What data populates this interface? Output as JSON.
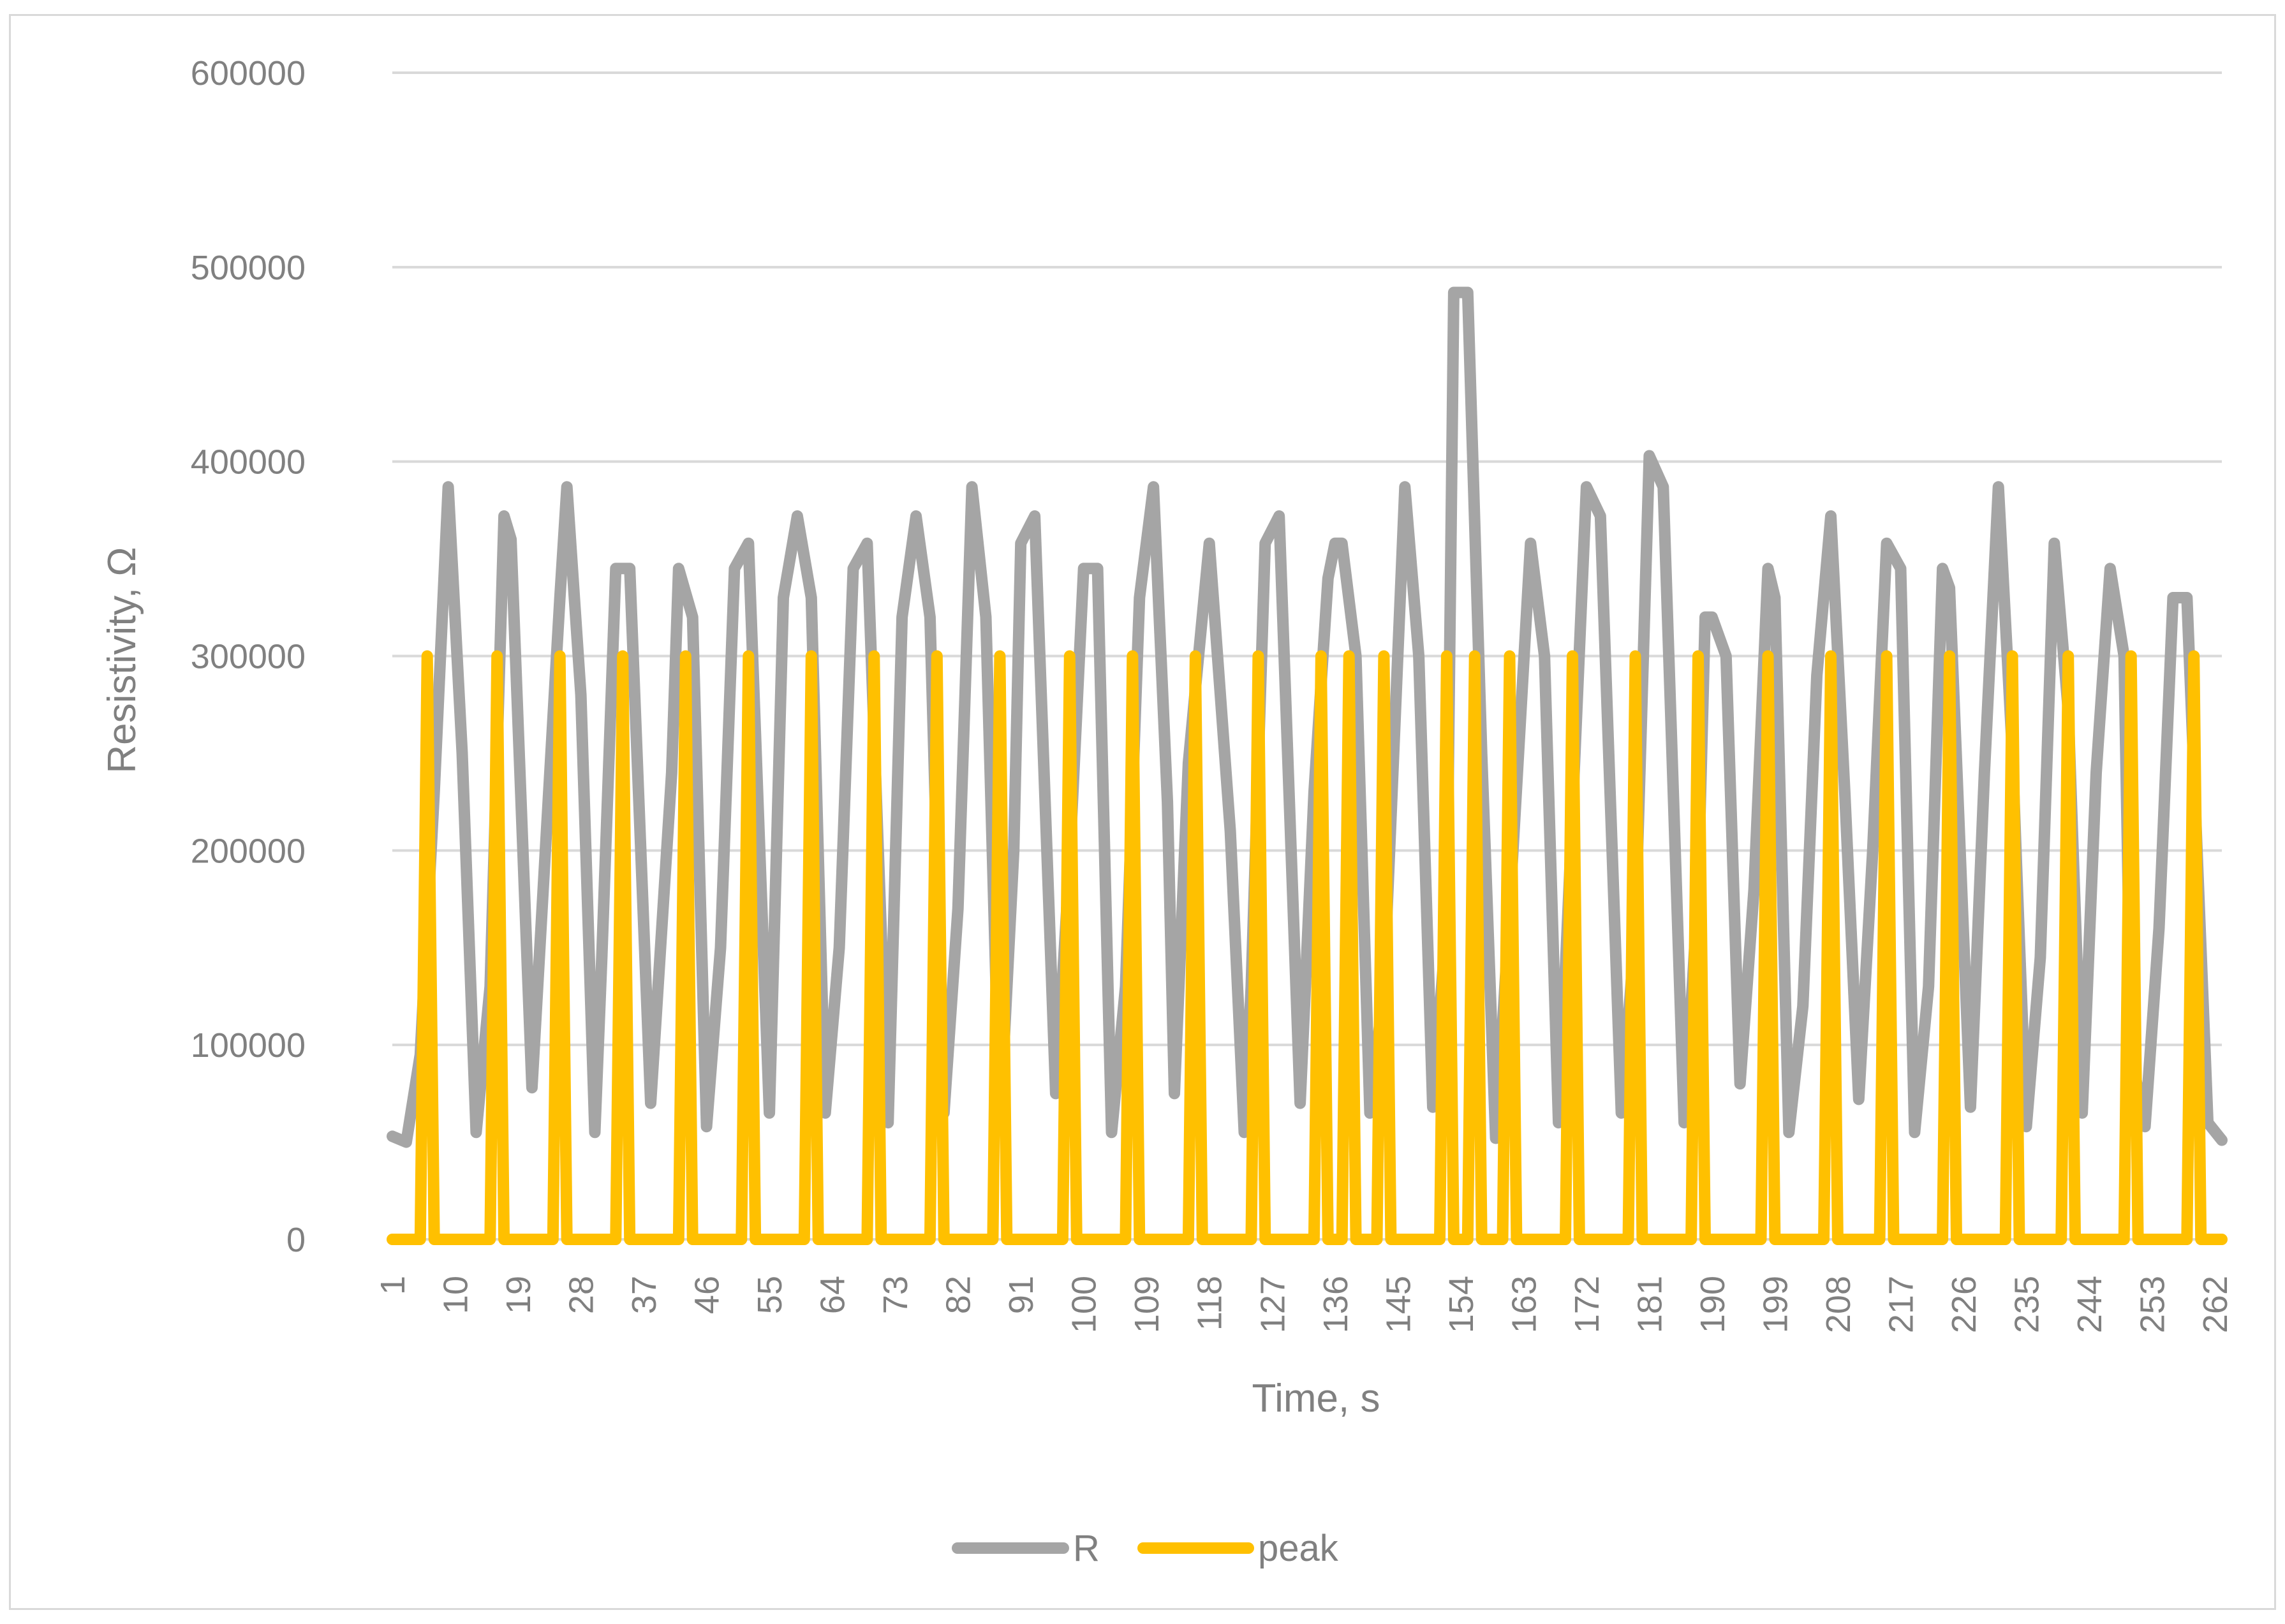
{
  "chart_data": {
    "type": "line",
    "title": "",
    "xlabel": "Time, s",
    "ylabel": "Resistivity, Ω",
    "ylim": [
      0,
      600000
    ],
    "yticks": [
      0,
      100000,
      200000,
      300000,
      400000,
      500000,
      600000
    ],
    "xlim": [
      1,
      263
    ],
    "xticks": [
      1,
      10,
      19,
      28,
      37,
      46,
      55,
      64,
      73,
      82,
      91,
      100,
      109,
      118,
      127,
      136,
      145,
      154,
      163,
      172,
      181,
      190,
      199,
      208,
      217,
      226,
      235,
      244,
      253,
      262
    ],
    "grid": true,
    "legend_position": "bottom",
    "series": [
      {
        "name": "R",
        "color": "#a5a5a5",
        "points": [
          [
            1,
            53000
          ],
          [
            3,
            50000
          ],
          [
            5,
            95000
          ],
          [
            7,
            230000
          ],
          [
            9,
            387000
          ],
          [
            11,
            250000
          ],
          [
            13,
            55000
          ],
          [
            15,
            130000
          ],
          [
            17,
            372000
          ],
          [
            18,
            360000
          ],
          [
            21,
            78000
          ],
          [
            23,
            205000
          ],
          [
            25,
            330000
          ],
          [
            26,
            387000
          ],
          [
            28,
            280000
          ],
          [
            30,
            55000
          ],
          [
            31,
            145000
          ],
          [
            33,
            345000
          ],
          [
            35,
            345000
          ],
          [
            38,
            70000
          ],
          [
            41,
            240000
          ],
          [
            42,
            345000
          ],
          [
            44,
            320000
          ],
          [
            46,
            58000
          ],
          [
            48,
            150000
          ],
          [
            50,
            345000
          ],
          [
            52,
            358000
          ],
          [
            55,
            65000
          ],
          [
            57,
            330000
          ],
          [
            59,
            372000
          ],
          [
            61,
            330000
          ],
          [
            63,
            65000
          ],
          [
            65,
            150000
          ],
          [
            67,
            345000
          ],
          [
            69,
            358000
          ],
          [
            72,
            60000
          ],
          [
            74,
            320000
          ],
          [
            76,
            372000
          ],
          [
            78,
            320000
          ],
          [
            80,
            65000
          ],
          [
            82,
            170000
          ],
          [
            84,
            387000
          ],
          [
            86,
            320000
          ],
          [
            88,
            58000
          ],
          [
            90,
            200000
          ],
          [
            91,
            358000
          ],
          [
            93,
            372000
          ],
          [
            96,
            75000
          ],
          [
            98,
            195000
          ],
          [
            100,
            345000
          ],
          [
            102,
            345000
          ],
          [
            104,
            55000
          ],
          [
            106,
            130000
          ],
          [
            108,
            330000
          ],
          [
            110,
            387000
          ],
          [
            112,
            225000
          ],
          [
            113,
            75000
          ],
          [
            115,
            245000
          ],
          [
            118,
            358000
          ],
          [
            121,
            210000
          ],
          [
            123,
            55000
          ],
          [
            124,
            130000
          ],
          [
            126,
            358000
          ],
          [
            128,
            372000
          ],
          [
            131,
            70000
          ],
          [
            133,
            230000
          ],
          [
            135,
            340000
          ],
          [
            136,
            358000
          ],
          [
            137,
            358000
          ],
          [
            139,
            300000
          ],
          [
            141,
            65000
          ],
          [
            143,
            130000
          ],
          [
            146,
            387000
          ],
          [
            148,
            300000
          ],
          [
            150,
            68000
          ],
          [
            152,
            165000
          ],
          [
            153,
            487000
          ],
          [
            155,
            487000
          ],
          [
            157,
            250000
          ],
          [
            159,
            52000
          ],
          [
            161,
            170000
          ],
          [
            164,
            358000
          ],
          [
            166,
            300000
          ],
          [
            168,
            60000
          ],
          [
            170,
            220000
          ],
          [
            172,
            387000
          ],
          [
            174,
            372000
          ],
          [
            177,
            65000
          ],
          [
            179,
            160000
          ],
          [
            181,
            403000
          ],
          [
            183,
            387000
          ],
          [
            186,
            60000
          ],
          [
            188,
            180000
          ],
          [
            189,
            320000
          ],
          [
            190,
            320000
          ],
          [
            192,
            300000
          ],
          [
            194,
            80000
          ],
          [
            196,
            180000
          ],
          [
            198,
            345000
          ],
          [
            199,
            330000
          ],
          [
            201,
            55000
          ],
          [
            203,
            120000
          ],
          [
            205,
            290000
          ],
          [
            207,
            372000
          ],
          [
            209,
            230000
          ],
          [
            211,
            72000
          ],
          [
            213,
            200000
          ],
          [
            215,
            358000
          ],
          [
            217,
            345000
          ],
          [
            219,
            55000
          ],
          [
            221,
            130000
          ],
          [
            223,
            345000
          ],
          [
            224,
            335000
          ],
          [
            227,
            68000
          ],
          [
            229,
            240000
          ],
          [
            231,
            387000
          ],
          [
            233,
            250000
          ],
          [
            235,
            58000
          ],
          [
            237,
            145000
          ],
          [
            239,
            358000
          ],
          [
            241,
            272000
          ],
          [
            243,
            65000
          ],
          [
            245,
            240000
          ],
          [
            247,
            345000
          ],
          [
            249,
            300000
          ],
          [
            250,
            95000
          ],
          [
            252,
            58000
          ],
          [
            254,
            160000
          ],
          [
            256,
            330000
          ],
          [
            258,
            330000
          ],
          [
            261,
            60000
          ],
          [
            263,
            51000
          ]
        ]
      },
      {
        "name": "peak",
        "color": "#ffc000",
        "points": [
          [
            1,
            0
          ],
          [
            5,
            0
          ],
          [
            6,
            300000
          ],
          [
            7,
            0
          ],
          [
            15,
            0
          ],
          [
            16,
            300000
          ],
          [
            17,
            0
          ],
          [
            24,
            0
          ],
          [
            25,
            300000
          ],
          [
            26,
            0
          ],
          [
            33,
            0
          ],
          [
            34,
            300000
          ],
          [
            35,
            0
          ],
          [
            42,
            0
          ],
          [
            43,
            300000
          ],
          [
            44,
            0
          ],
          [
            51,
            0
          ],
          [
            52,
            300000
          ],
          [
            53,
            0
          ],
          [
            60,
            0
          ],
          [
            61,
            300000
          ],
          [
            62,
            0
          ],
          [
            69,
            0
          ],
          [
            70,
            300000
          ],
          [
            71,
            0
          ],
          [
            78,
            0
          ],
          [
            79,
            300000
          ],
          [
            80,
            0
          ],
          [
            87,
            0
          ],
          [
            88,
            300000
          ],
          [
            89,
            0
          ],
          [
            97,
            0
          ],
          [
            98,
            300000
          ],
          [
            99,
            0
          ],
          [
            106,
            0
          ],
          [
            107,
            300000
          ],
          [
            108,
            0
          ],
          [
            115,
            0
          ],
          [
            116,
            300000
          ],
          [
            117,
            0
          ],
          [
            124,
            0
          ],
          [
            125,
            300000
          ],
          [
            126,
            0
          ],
          [
            133,
            0
          ],
          [
            134,
            300000
          ],
          [
            135,
            0
          ],
          [
            137,
            0
          ],
          [
            138,
            300000
          ],
          [
            139,
            0
          ],
          [
            142,
            0
          ],
          [
            143,
            300000
          ],
          [
            144,
            0
          ],
          [
            151,
            0
          ],
          [
            152,
            300000
          ],
          [
            153,
            0
          ],
          [
            155,
            0
          ],
          [
            156,
            300000
          ],
          [
            157,
            0
          ],
          [
            160,
            0
          ],
          [
            161,
            300000
          ],
          [
            162,
            0
          ],
          [
            169,
            0
          ],
          [
            170,
            300000
          ],
          [
            171,
            0
          ],
          [
            178,
            0
          ],
          [
            179,
            300000
          ],
          [
            180,
            0
          ],
          [
            187,
            0
          ],
          [
            188,
            300000
          ],
          [
            189,
            0
          ],
          [
            197,
            0
          ],
          [
            198,
            300000
          ],
          [
            199,
            0
          ],
          [
            206,
            0
          ],
          [
            207,
            300000
          ],
          [
            208,
            0
          ],
          [
            214,
            0
          ],
          [
            215,
            300000
          ],
          [
            216,
            0
          ],
          [
            223,
            0
          ],
          [
            224,
            300000
          ],
          [
            225,
            0
          ],
          [
            232,
            0
          ],
          [
            233,
            300000
          ],
          [
            234,
            0
          ],
          [
            240,
            0
          ],
          [
            241,
            300000
          ],
          [
            242,
            0
          ],
          [
            249,
            0
          ],
          [
            250,
            300000
          ],
          [
            251,
            0
          ],
          [
            258,
            0
          ],
          [
            259,
            300000
          ],
          [
            260,
            0
          ],
          [
            263,
            0
          ]
        ]
      }
    ]
  }
}
